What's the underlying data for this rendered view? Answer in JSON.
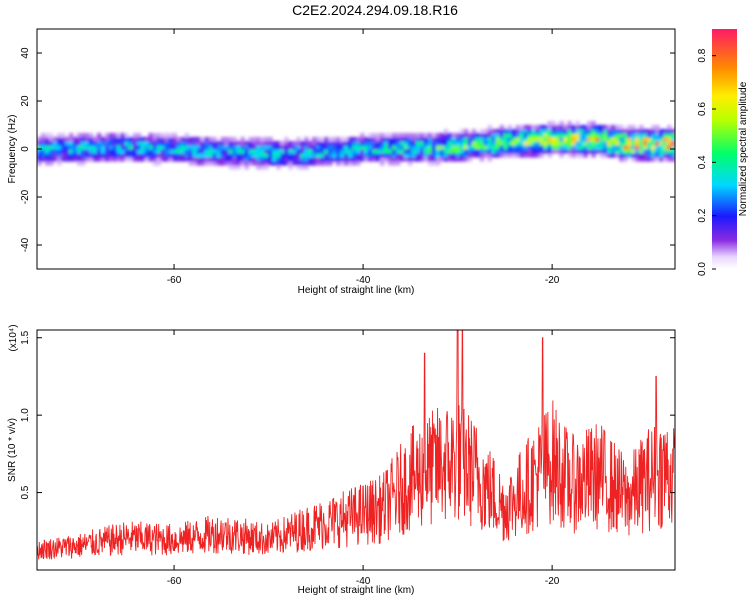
{
  "title": "C2E2.2024.294.09.18.R16",
  "chart_data": [
    {
      "type": "heatmap",
      "xlabel": "Height of straight line (km)",
      "ylabel": "Frequency (Hz)",
      "xlim": [
        -74.5,
        -7
      ],
      "ylim": [
        -50,
        50
      ],
      "xticks": [
        -60,
        -40,
        -20
      ],
      "yticks": [
        -40,
        -20,
        0,
        20,
        40
      ],
      "ridge_frequency_hz": [
        [
          -74,
          0
        ],
        [
          -65,
          1
        ],
        [
          -55,
          -1
        ],
        [
          -48,
          -2
        ],
        [
          -40,
          0
        ],
        [
          -30,
          1
        ],
        [
          -25,
          3
        ],
        [
          -20,
          4
        ],
        [
          -15,
          4
        ],
        [
          -12,
          2
        ],
        [
          -8,
          2
        ]
      ],
      "band_halfwidth_hz": 7,
      "colorbar": {
        "label": "Normalized spectral amplitude",
        "range": [
          0,
          0.9
        ],
        "ticks": [
          0.0,
          0.2,
          0.4,
          0.6,
          0.8
        ]
      },
      "grid": false
    },
    {
      "type": "line",
      "xlabel": "Height of straight line (km)",
      "ylabel": "SNR (10 * v/v)",
      "y_multiplier": "(x10⁴)",
      "xlim": [
        -74.5,
        -7
      ],
      "ylim": [
        0,
        1.55
      ],
      "xticks": [
        -60,
        -40,
        -20
      ],
      "yticks": [
        0.5,
        1.0,
        1.5
      ],
      "line_color": "#ee2222",
      "envelope_x": [
        -74,
        -70,
        -65,
        -60,
        -55,
        -50,
        -46,
        -42,
        -40,
        -38,
        -35,
        -32,
        -30,
        -28,
        -25,
        -22,
        -20,
        -18,
        -15,
        -12,
        -10,
        -8,
        -7
      ],
      "envelope_y": [
        0.18,
        0.22,
        0.3,
        0.28,
        0.35,
        0.28,
        0.4,
        0.5,
        0.55,
        0.6,
        0.9,
        1.05,
        1.1,
        0.95,
        0.6,
        0.9,
        1.1,
        0.85,
        0.95,
        0.7,
        0.9,
        1.0,
        0.9
      ],
      "peaks": [
        [
          -33.5,
          1.4
        ],
        [
          -30,
          1.55
        ],
        [
          -29.5,
          1.55
        ],
        [
          -21,
          1.5
        ],
        [
          -9,
          1.25
        ]
      ],
      "grid": false
    }
  ]
}
